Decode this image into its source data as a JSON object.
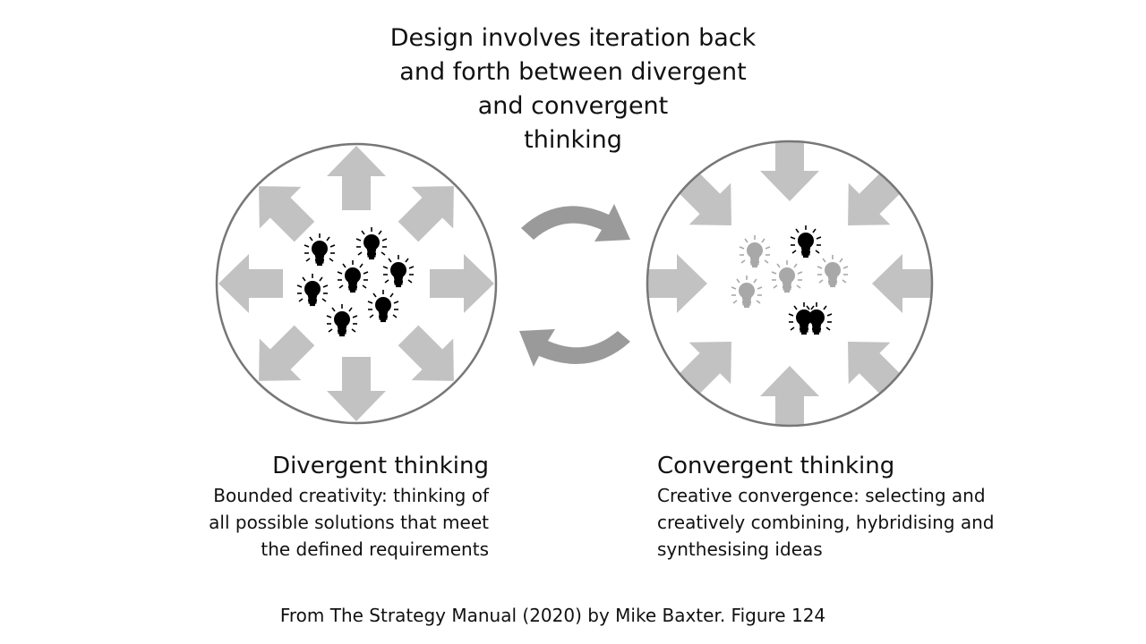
{
  "title_lines": [
    "Design involves iteration back",
    "and forth between divergent",
    "and convergent",
    "thinking"
  ],
  "divergent": {
    "heading": "Divergent thinking",
    "lines": [
      "Bounded creativity: thinking of",
      "all possible solutions that meet",
      "the defined requirements"
    ]
  },
  "convergent": {
    "heading": "Convergent thinking",
    "lines": [
      "Creative convergence: selecting and",
      "creatively combining, hybridising and",
      "synthesising ideas"
    ]
  },
  "footer": "From The Strategy Manual (2020) by Mike Baxter. Figure 124",
  "colors": {
    "arrow": "#c2c2c2",
    "circle": "#777777",
    "cycle_arrow": "#9a9a9a",
    "bulb": "#000000",
    "faded_bulb": "#a8a8a8"
  },
  "icons": [
    "lightbulb-icon",
    "arrow-icon",
    "cycle-arrow-icon"
  ]
}
